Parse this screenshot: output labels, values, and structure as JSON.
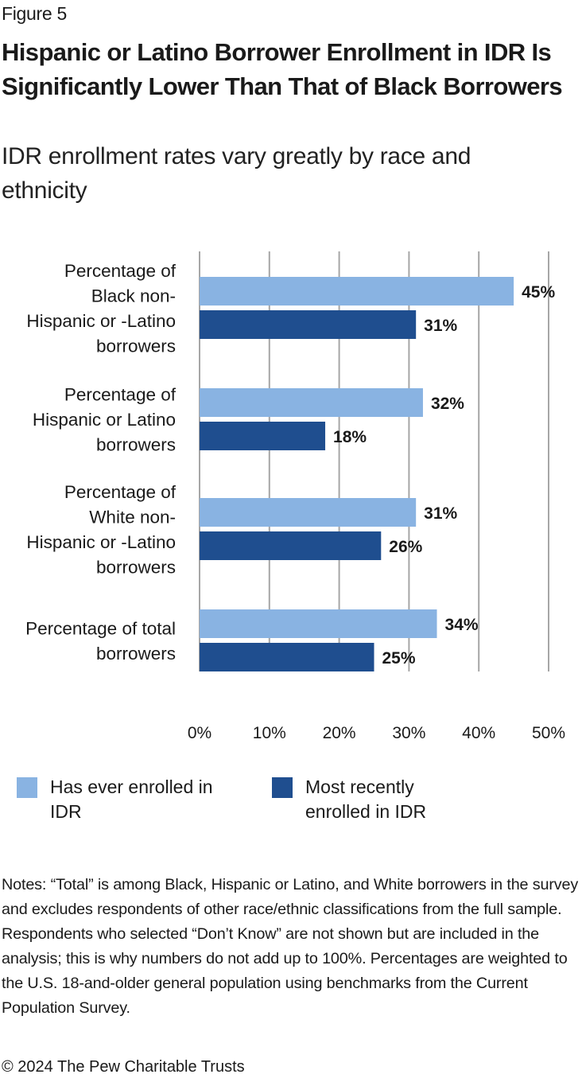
{
  "figure_label": "Figure 5",
  "title": "Hispanic or Latino Borrower Enrollment in IDR Is Significantly Lower Than That of Black Borrowers",
  "subtitle": "IDR enrollment rates vary greatly by race and ethnicity",
  "chart_data": {
    "type": "bar",
    "orientation": "horizontal",
    "title": "Hispanic or Latino Borrower Enrollment in IDR Is Significantly Lower Than That of Black Borrowers",
    "subtitle": "IDR enrollment rates vary greatly by race and ethnicity",
    "xlabel": "",
    "ylabel": "",
    "categories": [
      [
        "Percentage of",
        "Black non-",
        "Hispanic or -Latino",
        "borrowers"
      ],
      [
        "Percentage of",
        "Hispanic or Latino",
        "borrowers"
      ],
      [
        "Percentage of",
        "White non-",
        "Hispanic or -Latino",
        "borrowers"
      ],
      [
        "Percentage of total",
        "borrowers"
      ]
    ],
    "series": [
      {
        "name": "Has ever enrolled in IDR",
        "color": "#89b3e2",
        "values": [
          45,
          32,
          31,
          34
        ],
        "labels": [
          "45%",
          "32%",
          "31%",
          "34%"
        ]
      },
      {
        "name": "Most recently enrolled in IDR",
        "color": "#1f4e8f",
        "values": [
          31,
          18,
          26,
          25
        ],
        "labels": [
          "31%",
          "18%",
          "26%",
          "25%"
        ]
      }
    ],
    "xlim": [
      0,
      50
    ],
    "xticks": [
      0,
      10,
      20,
      30,
      40,
      50
    ],
    "xtick_labels": [
      "0%",
      "10%",
      "20%",
      "30%",
      "40%",
      "50%"
    ],
    "grid": "vertical",
    "gridline_color": "#a6a6a6",
    "legend_position": "bottom"
  },
  "legend": [
    {
      "line1": "Has ever enrolled in",
      "line2": "IDR",
      "color": "#89b3e2"
    },
    {
      "line1": "Most recently",
      "line2": "enrolled in IDR",
      "color": "#1f4e8f"
    }
  ],
  "notes": "Notes: “Total” is among Black, Hispanic or Latino, and White borrowers in the survey and excludes respondents of other race/ethnic classifications from the full sample. Respondents who selected “Don’t Know” are not shown but are included in the analysis; this is why numbers do not add up to 100%. Percentages are weighted to the U.S. 18-and-older general population using benchmarks from the Current Population Survey.",
  "copyright": "© 2024 The Pew Charitable Trusts"
}
